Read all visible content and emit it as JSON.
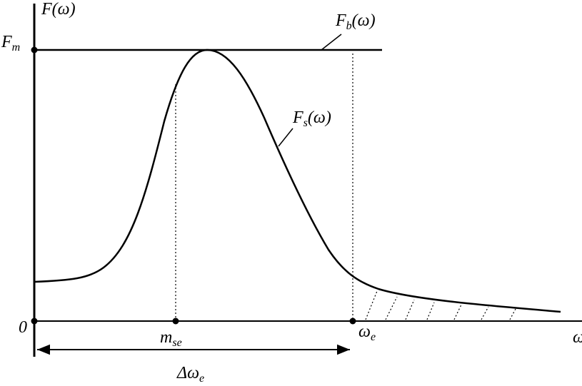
{
  "labels": {
    "y_axis": {
      "base": "F",
      "arg": "(ω)"
    },
    "f_m": {
      "base": "F",
      "sub": "m"
    },
    "f_b": {
      "base": "F",
      "sub": "b",
      "arg": "(ω)"
    },
    "f_s": {
      "base": "F",
      "sub": "s",
      "arg": "(ω)"
    },
    "origin": "0",
    "m_se": {
      "base": "m",
      "sub": "se"
    },
    "omega_e": {
      "base": "ω",
      "sub": "e"
    },
    "delta_omega_e": {
      "base": "Δω",
      "sub": "e"
    },
    "x_axis": "ω"
  }
}
